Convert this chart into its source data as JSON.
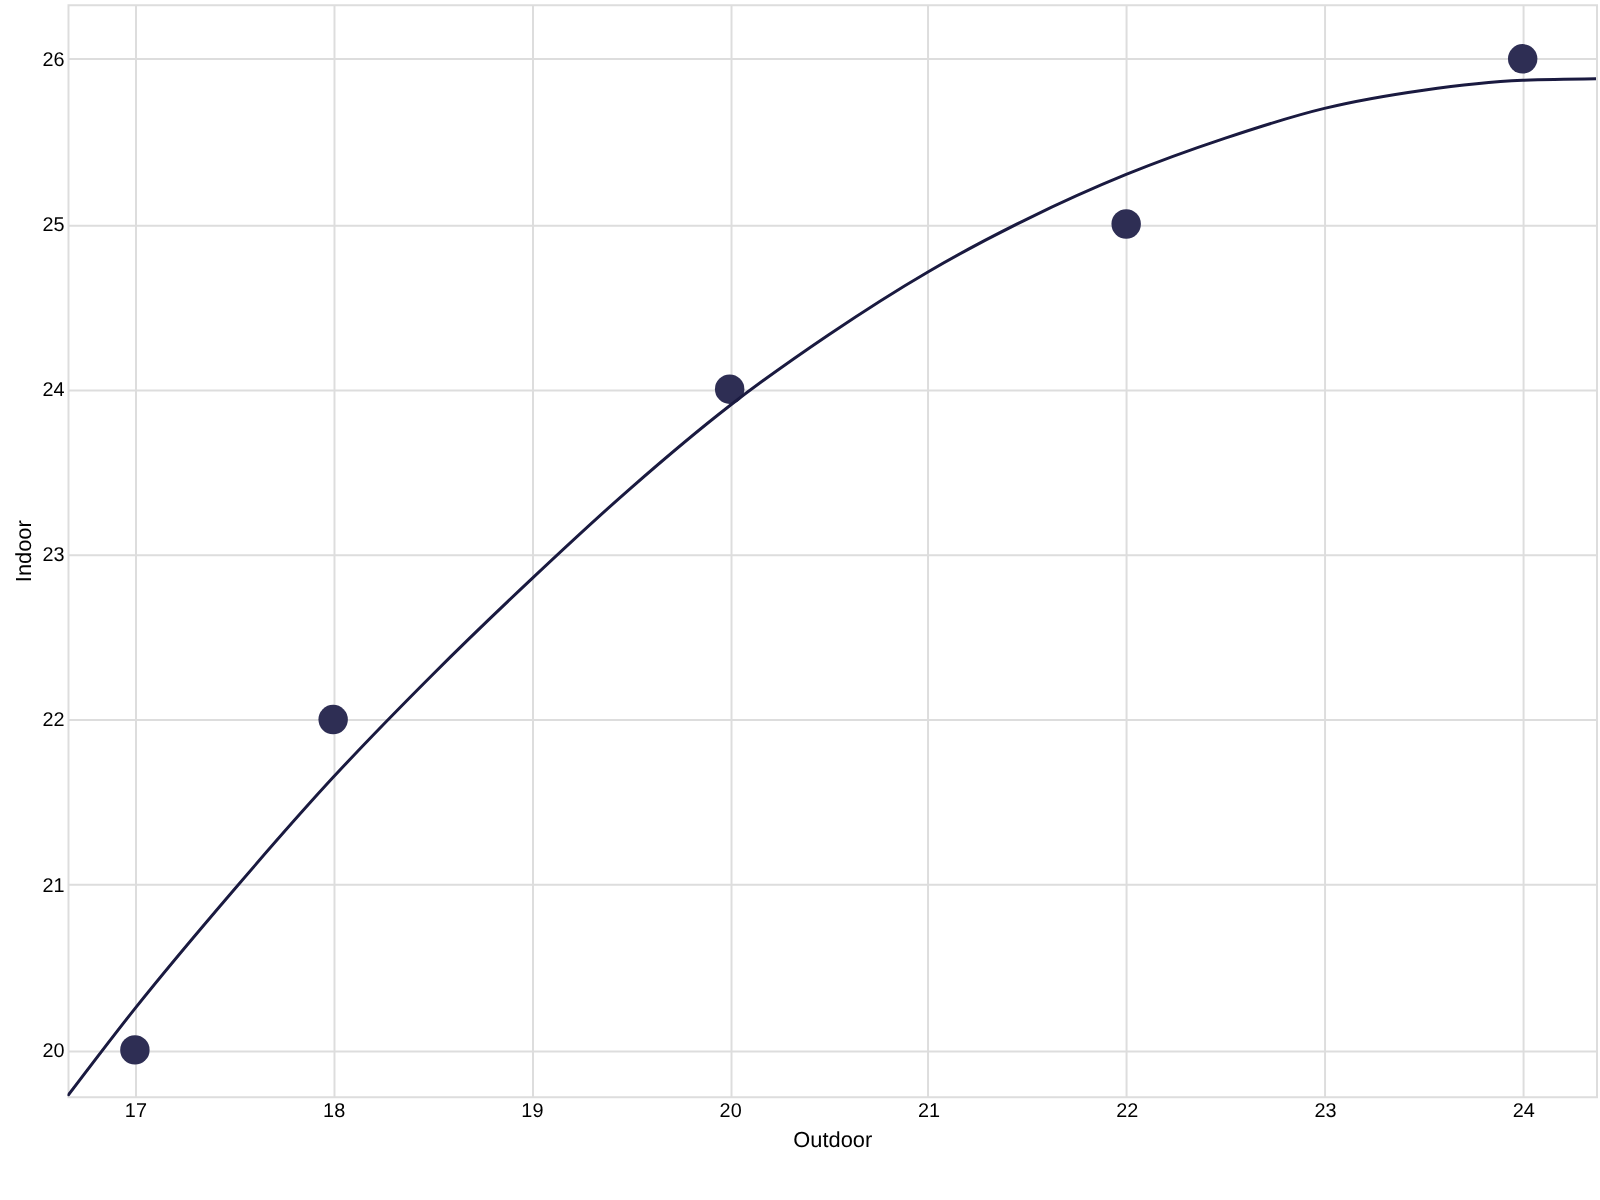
{
  "chart_data": {
    "type": "scatter",
    "xlabel": "Outdoor",
    "ylabel": "Indoor",
    "xlim": [
      16.66,
      24.37
    ],
    "xticks": [
      17,
      18,
      19,
      20,
      21,
      22,
      23,
      24
    ],
    "ylim": [
      19.72,
      26.33
    ],
    "yticks": [
      20,
      21,
      22,
      23,
      24,
      25,
      26
    ],
    "grid": true,
    "marker": "circle",
    "series": [
      {
        "color": "#2e2e54",
        "x": [
          17,
          18,
          20,
          22,
          24
        ],
        "values": [
          20,
          22,
          24,
          25,
          26
        ]
      },
      {
        "type": "line",
        "color": "#1a1a40",
        "line_style": "solid",
        "marker": "none",
        "x": [
          16.66,
          17,
          17.5,
          18,
          18.5,
          19,
          19.5,
          20,
          20.5,
          21,
          21.5,
          22,
          22.5,
          23,
          23.5,
          24,
          24.37
        ],
        "values": [
          19.72,
          20.25,
          20.97,
          21.65,
          22.27,
          22.85,
          23.4,
          23.9,
          24.33,
          24.71,
          25.03,
          25.3,
          25.52,
          25.7,
          25.81,
          25.87,
          25.88
        ]
      }
    ]
  }
}
